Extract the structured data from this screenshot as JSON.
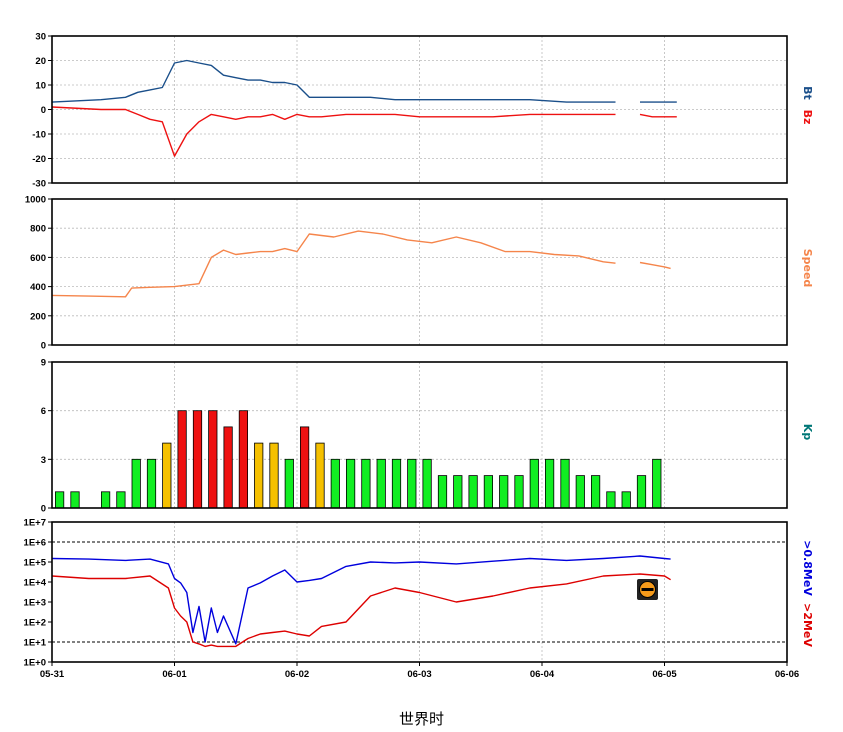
{
  "xlabel": "世界时",
  "x_ticks": [
    "05-31",
    "06-01",
    "06-02",
    "06-03",
    "06-04",
    "06-05",
    "06-06"
  ],
  "colors": {
    "bt": "#1a4f8a",
    "bz": "#ee1111",
    "speed": "#f5854b",
    "kp_green": "#11ee22",
    "kp_yellow": "#f5c000",
    "kp_red": "#ee1111",
    "e08": "#0000dd",
    "e2": "#dd0000",
    "kp_label": "#007777"
  },
  "icon": "warning-circle-icon",
  "chart_data": [
    {
      "type": "line",
      "name": "imf-panel",
      "ylim": [
        -30,
        30
      ],
      "y_ticks": [
        "30",
        "20",
        "10",
        "0",
        "-10",
        "-20",
        "-30"
      ],
      "series": [
        {
          "name": "Bt",
          "x": [
            0,
            0.4,
            0.6,
            0.7,
            0.8,
            0.9,
            1.0,
            1.1,
            1.2,
            1.3,
            1.4,
            1.5,
            1.6,
            1.7,
            1.8,
            1.9,
            2.0,
            2.1,
            2.2,
            2.4,
            2.6,
            2.8,
            3.0,
            3.3,
            3.6,
            3.9,
            4.2,
            4.4,
            4.6,
            4.7,
            4.8,
            4.9,
            5.0,
            5.1
          ],
          "y": [
            3,
            4,
            5,
            7,
            8,
            9,
            19,
            20,
            19,
            18,
            14,
            13,
            12,
            12,
            11,
            11,
            10,
            5,
            5,
            5,
            5,
            4,
            4,
            4,
            4,
            4,
            3,
            3,
            3,
            null,
            3,
            3,
            3,
            3
          ]
        },
        {
          "name": "Bz",
          "x": [
            0,
            0.4,
            0.6,
            0.7,
            0.8,
            0.9,
            1.0,
            1.1,
            1.2,
            1.3,
            1.4,
            1.5,
            1.6,
            1.7,
            1.8,
            1.9,
            2.0,
            2.1,
            2.2,
            2.4,
            2.6,
            2.8,
            3.0,
            3.3,
            3.6,
            3.9,
            4.2,
            4.4,
            4.6,
            4.7,
            4.8,
            4.9,
            5.0,
            5.1
          ],
          "y": [
            1,
            0,
            0,
            -2,
            -4,
            -5,
            -19,
            -10,
            -5,
            -2,
            -3,
            -4,
            -3,
            -3,
            -2,
            -4,
            -2,
            -3,
            -3,
            -2,
            -2,
            -2,
            -3,
            -3,
            -3,
            -2,
            -2,
            -2,
            -2,
            null,
            -2,
            -3,
            -3,
            -3
          ]
        }
      ],
      "right_labels": [
        "Bt",
        "Bz"
      ]
    },
    {
      "type": "line",
      "name": "speed-panel",
      "ylim": [
        0,
        1000
      ],
      "y_ticks": [
        "1000",
        "800",
        "600",
        "400",
        "200",
        "0"
      ],
      "series": [
        {
          "name": "Speed",
          "x": [
            0,
            0.3,
            0.6,
            0.65,
            0.8,
            1.0,
            1.2,
            1.3,
            1.4,
            1.5,
            1.6,
            1.7,
            1.8,
            1.9,
            2.0,
            2.1,
            2.3,
            2.5,
            2.7,
            2.9,
            3.1,
            3.3,
            3.5,
            3.7,
            3.9,
            4.1,
            4.3,
            4.5,
            4.6,
            4.7,
            4.8,
            4.9,
            5.0,
            5.05
          ],
          "y": [
            340,
            335,
            330,
            390,
            395,
            400,
            420,
            600,
            650,
            620,
            630,
            640,
            640,
            660,
            640,
            760,
            740,
            780,
            760,
            720,
            700,
            740,
            700,
            640,
            640,
            620,
            610,
            570,
            560,
            null,
            565,
            550,
            535,
            525
          ]
        }
      ],
      "right_labels": [
        "Speed"
      ]
    },
    {
      "type": "bar",
      "name": "kp-panel",
      "ylim": [
        0,
        9
      ],
      "y_ticks": [
        "9",
        "6",
        "3",
        "0"
      ],
      "values": [
        1,
        1,
        null,
        1,
        1,
        3,
        3,
        4,
        6,
        6,
        6,
        5,
        6,
        4,
        4,
        3,
        5,
        4,
        3,
        3,
        3,
        3,
        3,
        3,
        3,
        2,
        2,
        2,
        2,
        2,
        2,
        3,
        3,
        3,
        2,
        2,
        1,
        1,
        2,
        3
      ],
      "bar_start_day": 0.0625,
      "bar_step_day": 0.125,
      "right_labels": [
        "Kp"
      ]
    },
    {
      "type": "line",
      "name": "electron-panel",
      "log_scale": true,
      "ylim": [
        1,
        10000000
      ],
      "y_ticks": [
        "1E+7",
        "1E+6",
        "1E+5",
        "1E+4",
        "1E+3",
        "1E+2",
        "1E+1",
        "1E+0"
      ],
      "threshold_lines": [
        1000000,
        10
      ],
      "series": [
        {
          "name": ">0.8MeV",
          "x": [
            0,
            0.3,
            0.6,
            0.8,
            0.95,
            1.0,
            1.05,
            1.1,
            1.15,
            1.2,
            1.25,
            1.3,
            1.35,
            1.4,
            1.5,
            1.6,
            1.7,
            1.8,
            1.9,
            2.0,
            2.1,
            2.2,
            2.4,
            2.6,
            2.8,
            3.0,
            3.3,
            3.6,
            3.9,
            4.2,
            4.5,
            4.8,
            5.0,
            5.05
          ],
          "y": [
            150000,
            140000,
            120000,
            140000,
            80000,
            15000,
            9000,
            3000,
            30,
            600,
            10,
            500,
            30,
            200,
            8,
            5000,
            9000,
            20000,
            40000,
            10000,
            12000,
            15000,
            60000,
            100000,
            90000,
            100000,
            80000,
            110000,
            150000,
            120000,
            150000,
            200000,
            150000,
            140000
          ]
        },
        {
          "name": ">2MeV",
          "x": [
            0,
            0.3,
            0.6,
            0.8,
            0.95,
            1.0,
            1.05,
            1.1,
            1.15,
            1.2,
            1.25,
            1.3,
            1.35,
            1.4,
            1.5,
            1.6,
            1.7,
            1.8,
            1.9,
            2.0,
            2.1,
            2.2,
            2.4,
            2.6,
            2.8,
            3.0,
            3.3,
            3.6,
            3.9,
            4.2,
            4.5,
            4.8,
            5.0,
            5.05
          ],
          "y": [
            20000,
            15000,
            15000,
            20000,
            5000,
            500,
            200,
            100,
            10,
            8,
            6,
            7,
            6,
            6,
            6,
            15,
            25,
            30,
            35,
            25,
            20,
            60,
            100,
            2000,
            5000,
            3000,
            1000,
            2000,
            5000,
            8000,
            20000,
            25000,
            20000,
            13000
          ]
        }
      ],
      "right_labels": [
        ">0.8MeV",
        ">2MeV"
      ]
    }
  ]
}
